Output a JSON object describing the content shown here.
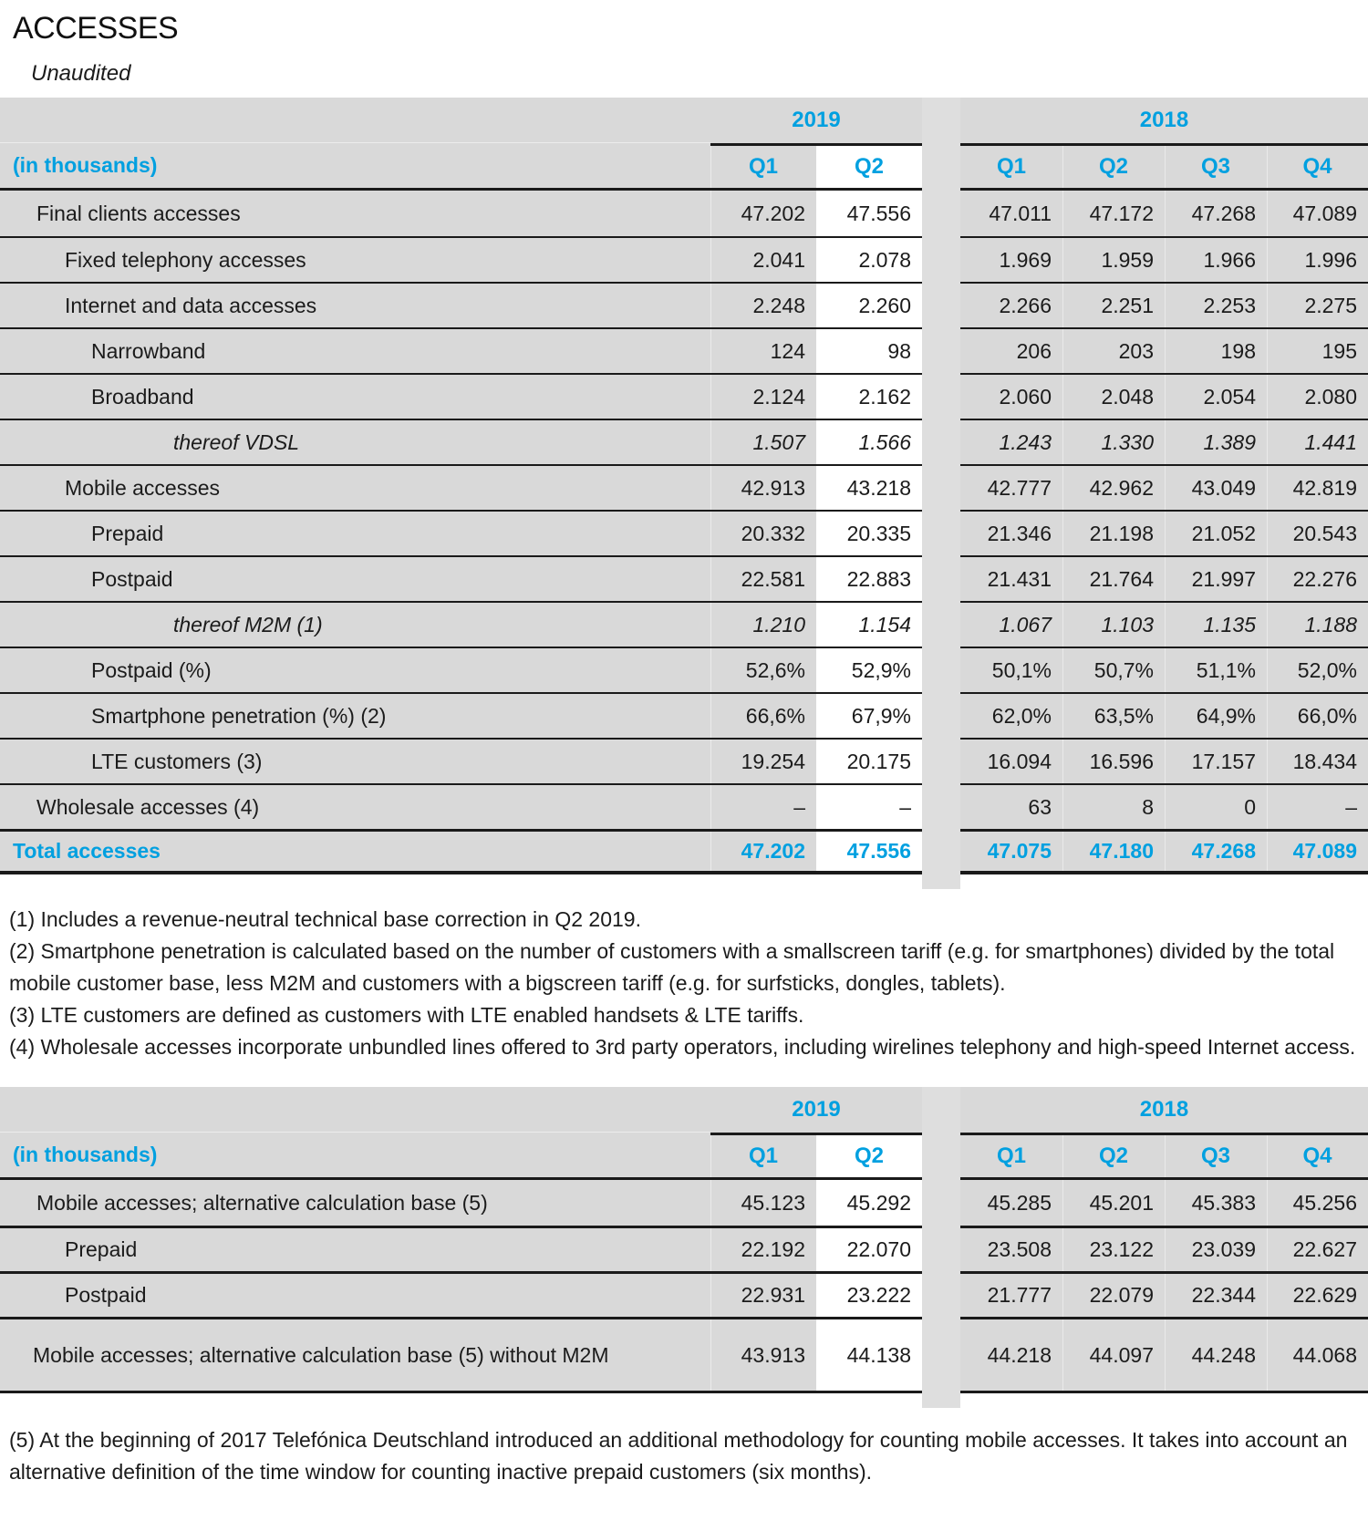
{
  "page": {
    "title": "ACCESSES",
    "subtitle": "Unaudited"
  },
  "colors": {
    "accent_blue": "#00A0E0",
    "row_gray": "#D9D9D9",
    "gap_gray": "#DEDEDE",
    "highlight_white": "#FFFFFF",
    "line_black": "#1A1A1A"
  },
  "header": {
    "unit_label": "(in thousands)",
    "highlighted_column": "2019 Q2",
    "year_groups": [
      {
        "year": "2019",
        "quarters": [
          "Q1",
          "Q2"
        ]
      },
      {
        "year": "2018",
        "quarters": [
          "Q1",
          "Q2",
          "Q3",
          "Q4"
        ]
      }
    ]
  },
  "table1": {
    "rows": [
      {
        "label": "Final clients accesses",
        "indent": 1,
        "style": "normal",
        "values": [
          "47.202",
          "47.556",
          "47.011",
          "47.172",
          "47.268",
          "47.089"
        ]
      },
      {
        "label": "Fixed telephony accesses",
        "indent": 2,
        "style": "normal",
        "values": [
          "2.041",
          "2.078",
          "1.969",
          "1.959",
          "1.966",
          "1.996"
        ]
      },
      {
        "label": "Internet and data accesses",
        "indent": 2,
        "style": "normal",
        "values": [
          "2.248",
          "2.260",
          "2.266",
          "2.251",
          "2.253",
          "2.275"
        ]
      },
      {
        "label": "Narrowband",
        "indent": 3,
        "style": "normal",
        "values": [
          "124",
          "98",
          "206",
          "203",
          "198",
          "195"
        ]
      },
      {
        "label": "Broadband",
        "indent": 3,
        "style": "normal",
        "values": [
          "2.124",
          "2.162",
          "2.060",
          "2.048",
          "2.054",
          "2.080"
        ]
      },
      {
        "label": "thereof VDSL",
        "indent": 4,
        "style": "italic",
        "values": [
          "1.507",
          "1.566",
          "1.243",
          "1.330",
          "1.389",
          "1.441"
        ]
      },
      {
        "label": "Mobile accesses",
        "indent": 2,
        "style": "normal",
        "values": [
          "42.913",
          "43.218",
          "42.777",
          "42.962",
          "43.049",
          "42.819"
        ]
      },
      {
        "label": "Prepaid",
        "indent": 3,
        "style": "normal",
        "values": [
          "20.332",
          "20.335",
          "21.346",
          "21.198",
          "21.052",
          "20.543"
        ]
      },
      {
        "label": "Postpaid",
        "indent": 3,
        "style": "normal",
        "values": [
          "22.581",
          "22.883",
          "21.431",
          "21.764",
          "21.997",
          "22.276"
        ]
      },
      {
        "label": "thereof M2M (1)",
        "indent": 4,
        "style": "italic",
        "values": [
          "1.210",
          "1.154",
          "1.067",
          "1.103",
          "1.135",
          "1.188"
        ]
      },
      {
        "label": "Postpaid (%)",
        "indent": 3,
        "style": "normal",
        "values": [
          "52,6%",
          "52,9%",
          "50,1%",
          "50,7%",
          "51,1%",
          "52,0%"
        ]
      },
      {
        "label": "Smartphone penetration (%) (2)",
        "indent": 3,
        "style": "normal",
        "values": [
          "66,6%",
          "67,9%",
          "62,0%",
          "63,5%",
          "64,9%",
          "66,0%"
        ]
      },
      {
        "label": "LTE customers (3)",
        "indent": 3,
        "style": "normal",
        "values": [
          "19.254",
          "20.175",
          "16.094",
          "16.596",
          "17.157",
          "18.434"
        ]
      },
      {
        "label": "Wholesale accesses (4)",
        "indent": 1,
        "style": "normal",
        "values": [
          "–",
          "–",
          "63",
          "8",
          "0",
          "–"
        ]
      },
      {
        "label": "Total accesses",
        "indent": 0,
        "style": "total",
        "values": [
          "47.202",
          "47.556",
          "47.075",
          "47.180",
          "47.268",
          "47.089"
        ]
      }
    ]
  },
  "footnotes1": [
    "(1) Includes a revenue-neutral technical base correction in Q2 2019.",
    "(2) Smartphone penetration is calculated based on the number of customers with a smallscreen tariff (e.g. for smartphones) divided by the total mobile customer base, less M2M and customers with a bigscreen tariff (e.g. for surfsticks, dongles, tablets).",
    "(3) LTE customers are defined as customers with LTE enabled handsets & LTE tariffs.",
    "(4) Wholesale accesses incorporate unbundled lines offered to 3rd party operators, including wirelines telephony and high-speed Internet access."
  ],
  "table2": {
    "rows": [
      {
        "label": "Mobile accesses; alternative calculation base (5)",
        "indent": 1,
        "style": "normal",
        "values": [
          "45.123",
          "45.292",
          "45.285",
          "45.201",
          "45.383",
          "45.256"
        ]
      },
      {
        "label": "Prepaid",
        "indent": 2,
        "style": "normal",
        "values": [
          "22.192",
          "22.070",
          "23.508",
          "23.122",
          "23.039",
          "22.627"
        ]
      },
      {
        "label": "Postpaid",
        "indent": 2,
        "style": "normal",
        "values": [
          "22.931",
          "23.222",
          "21.777",
          "22.079",
          "22.344",
          "22.629"
        ]
      },
      {
        "label": "Mobile accesses; alternative calculation base (5) without M2M",
        "indent": 1,
        "style": "wrap",
        "values": [
          "43.913",
          "44.138",
          "44.218",
          "44.097",
          "44.248",
          "44.068"
        ]
      }
    ]
  },
  "footnotes2": [
    "(5) At the beginning of 2017 Telefónica Deutschland introduced an additional methodology for counting mobile accesses. It takes into account an alternative definition of the time window for counting inactive prepaid customers (six months)."
  ]
}
